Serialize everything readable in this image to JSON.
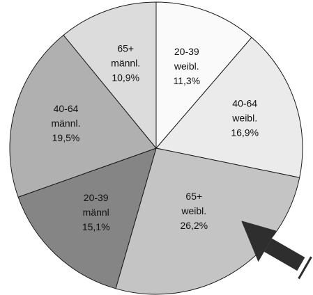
{
  "chart_data": {
    "type": "pie",
    "start_angle_deg": 90,
    "direction": "clockwise",
    "slices": [
      {
        "age": "20-39",
        "sex": "weibl.",
        "value": 11.3,
        "value_label": "11,3%",
        "color": "#fafafa"
      },
      {
        "age": "40-64",
        "sex": "weibl.",
        "value": 16.9,
        "value_label": "16,9%",
        "color": "#ebebeb"
      },
      {
        "age": "65+",
        "sex": "weibl.",
        "value": 26.2,
        "value_label": "26,2%",
        "color": "#c4c4c4"
      },
      {
        "age": "20-39",
        "sex": "männl",
        "value": 15.1,
        "value_label": "15,1%",
        "color": "#858585"
      },
      {
        "age": "40-64",
        "sex": "männl.",
        "value": 19.5,
        "value_label": "19,5%",
        "color": "#b0b0b0"
      },
      {
        "age": "65+",
        "sex": "männl.",
        "value": 10.9,
        "value_label": "10,9%",
        "color": "#dcdcdc"
      }
    ],
    "annotation": {
      "type": "arrow",
      "points_to": "65+ weibl."
    }
  }
}
